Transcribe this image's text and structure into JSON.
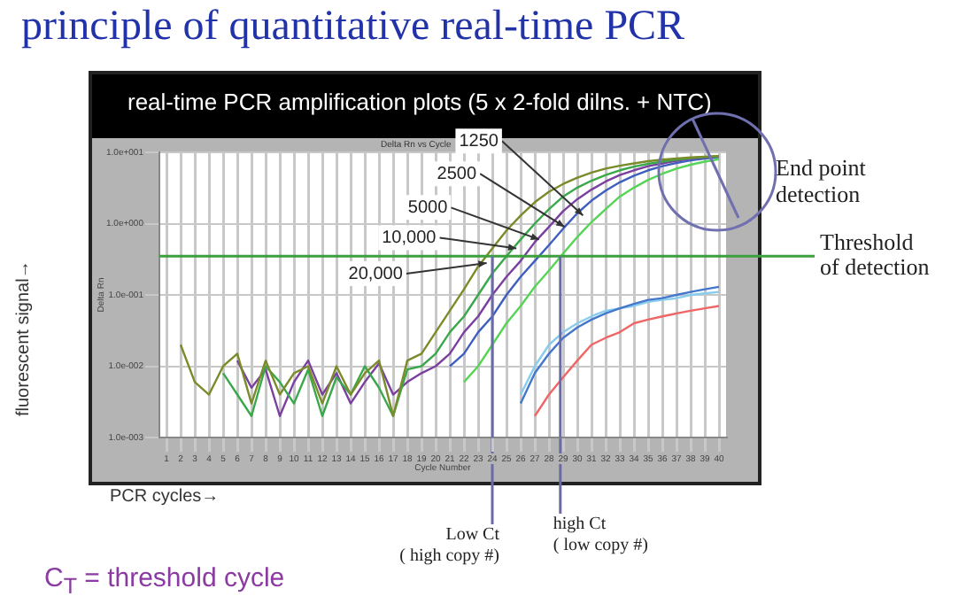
{
  "chart_data": {
    "type": "line",
    "title": "principle of quantitative real-time PCR",
    "subtitle": "real-time PCR amplification plots (5 x 2-fold dilns. + NTC)",
    "xlabel": "Cycle Number",
    "ylabel": "Delta Rn",
    "annotations": [
      "Delta Rn vs Cycle",
      "fluorescent signal→",
      "PCR cycles→",
      "End point detection",
      "C$_{T}$ = threshold cycle",
      {
        "text": "20,000",
        "x": 23.6,
        "y": 0.28
      },
      {
        "text": "10,000",
        "x": 25.7,
        "y": 0.45
      },
      {
        "text": "5000",
        "x": 27.3,
        "y": 0.6
      },
      {
        "text": "2500",
        "x": 29.1,
        "y": 0.9
      },
      {
        "text": "1250",
        "x": 30.4,
        "y": 1.3
      }
    ],
    "x": [
      2,
      3,
      4,
      5,
      6,
      7,
      8,
      9,
      10,
      11,
      12,
      13,
      14,
      15,
      16,
      17,
      18,
      19,
      20,
      21,
      22,
      23,
      24,
      25,
      26,
      27,
      28,
      29,
      30,
      31,
      32,
      33,
      34,
      35,
      36,
      37,
      38,
      39,
      40
    ],
    "series": [
      {
        "color": "#7a8b2a",
        "values": [
          0.02,
          0.006,
          0.004,
          0.01,
          0.015,
          0.003,
          0.012,
          0.004,
          0.008,
          0.01,
          0.003,
          0.01,
          0.004,
          0.008,
          0.012,
          0.002,
          0.012,
          0.015,
          0.03,
          0.06,
          0.12,
          0.25,
          0.45,
          0.8,
          1.3,
          2.0,
          2.8,
          3.6,
          4.4,
          5.2,
          5.9,
          6.5,
          7.0,
          7.5,
          7.9,
          8.2,
          8.5,
          8.7,
          8.9
        ]
      },
      {
        "color": "#3aa84a",
        "values": [
          null,
          null,
          null,
          0.008,
          0.004,
          0.002,
          0.01,
          0.006,
          0.003,
          0.009,
          0.002,
          0.007,
          0.004,
          0.01,
          0.005,
          0.002,
          0.009,
          0.01,
          0.015,
          0.03,
          0.05,
          0.1,
          0.2,
          0.35,
          0.6,
          1.0,
          1.6,
          2.4,
          3.2,
          4.0,
          4.8,
          5.6,
          6.3,
          6.9,
          7.4,
          7.9,
          8.3,
          8.6,
          8.8
        ]
      },
      {
        "color": "#7b3fa0",
        "values": [
          null,
          null,
          null,
          null,
          0.012,
          0.005,
          0.009,
          0.002,
          0.006,
          0.012,
          0.004,
          0.008,
          0.003,
          0.006,
          0.011,
          0.004,
          0.006,
          0.008,
          0.01,
          0.015,
          0.03,
          0.05,
          0.1,
          0.18,
          0.3,
          0.55,
          0.9,
          1.5,
          2.2,
          3.0,
          3.9,
          4.8,
          5.6,
          6.4,
          7.0,
          7.6,
          8.1,
          8.5,
          8.8
        ]
      },
      {
        "color": "#3f5fbf",
        "values": [
          null,
          null,
          null,
          null,
          null,
          null,
          null,
          null,
          null,
          null,
          null,
          null,
          null,
          null,
          null,
          null,
          null,
          null,
          null,
          0.01,
          0.015,
          0.03,
          0.05,
          0.1,
          0.18,
          0.3,
          0.5,
          0.85,
          1.4,
          2.1,
          2.9,
          3.8,
          4.7,
          5.6,
          6.4,
          7.1,
          7.7,
          8.2,
          8.6
        ]
      },
      {
        "color": "#55d455",
        "values": [
          null,
          null,
          null,
          null,
          null,
          null,
          null,
          null,
          null,
          null,
          null,
          null,
          null,
          null,
          null,
          null,
          null,
          null,
          null,
          null,
          0.006,
          0.01,
          0.02,
          0.04,
          0.07,
          0.13,
          0.22,
          0.38,
          0.65,
          1.05,
          1.6,
          2.4,
          3.2,
          4.1,
          5.0,
          5.9,
          6.7,
          7.4,
          8.0
        ]
      },
      {
        "color": "#4477cc",
        "values": [
          null,
          null,
          null,
          null,
          null,
          null,
          null,
          null,
          null,
          null,
          null,
          null,
          null,
          null,
          null,
          null,
          null,
          null,
          null,
          null,
          null,
          null,
          null,
          null,
          0.003,
          0.008,
          0.015,
          0.025,
          0.035,
          0.045,
          0.055,
          0.065,
          0.075,
          0.085,
          0.09,
          0.1,
          0.11,
          0.12,
          0.13
        ]
      },
      {
        "color": "#88ccee",
        "values": [
          null,
          null,
          null,
          null,
          null,
          null,
          null,
          null,
          null,
          null,
          null,
          null,
          null,
          null,
          null,
          null,
          null,
          null,
          null,
          null,
          null,
          null,
          null,
          null,
          0.004,
          0.01,
          0.02,
          0.03,
          0.04,
          0.05,
          0.06,
          0.065,
          0.07,
          0.08,
          0.085,
          0.09,
          0.1,
          0.105,
          0.11
        ]
      },
      {
        "color": "#ee6666",
        "values": [
          null,
          null,
          null,
          null,
          null,
          null,
          null,
          null,
          null,
          null,
          null,
          null,
          null,
          null,
          null,
          null,
          null,
          null,
          null,
          null,
          null,
          null,
          null,
          null,
          null,
          0.002,
          0.004,
          0.007,
          0.012,
          0.02,
          0.025,
          0.03,
          0.04,
          0.045,
          0.05,
          0.055,
          0.06,
          0.065,
          0.07
        ]
      }
    ],
    "xlim": [
      0.5,
      40.5
    ],
    "xticks": [
      1,
      2,
      3,
      4,
      5,
      6,
      7,
      8,
      9,
      10,
      11,
      12,
      13,
      14,
      15,
      16,
      17,
      18,
      19,
      20,
      21,
      22,
      23,
      24,
      25,
      26,
      27,
      28,
      29,
      30,
      31,
      32,
      33,
      34,
      35,
      36,
      37,
      38,
      39,
      40
    ],
    "ylim": [
      0.001,
      10
    ],
    "yticks": [
      {
        "value": 10,
        "label": "1.0e+001"
      },
      {
        "value": 1,
        "label": "1.0e+000"
      },
      {
        "value": 0.1,
        "label": "1.0e-001"
      },
      {
        "value": 0.01,
        "label": "1.0e-002"
      },
      {
        "value": 0.001,
        "label": "1.0e-003"
      }
    ],
    "log": true,
    "grid": true,
    "legend": false,
    "marker": "none",
    "line_style": "solid",
    "ref_lines": [
      {
        "axis": "y",
        "value": 0.35,
        "label": "Threshold of detection",
        "color": "#3ca03c"
      },
      {
        "axis": "x",
        "value": 24,
        "label": "Low Ct ( high copy #)",
        "color": "#6a6aa8"
      },
      {
        "axis": "x",
        "value": 28.8,
        "label": "high Ct ( low copy #)",
        "color": "#6a6aa8"
      }
    ]
  }
}
